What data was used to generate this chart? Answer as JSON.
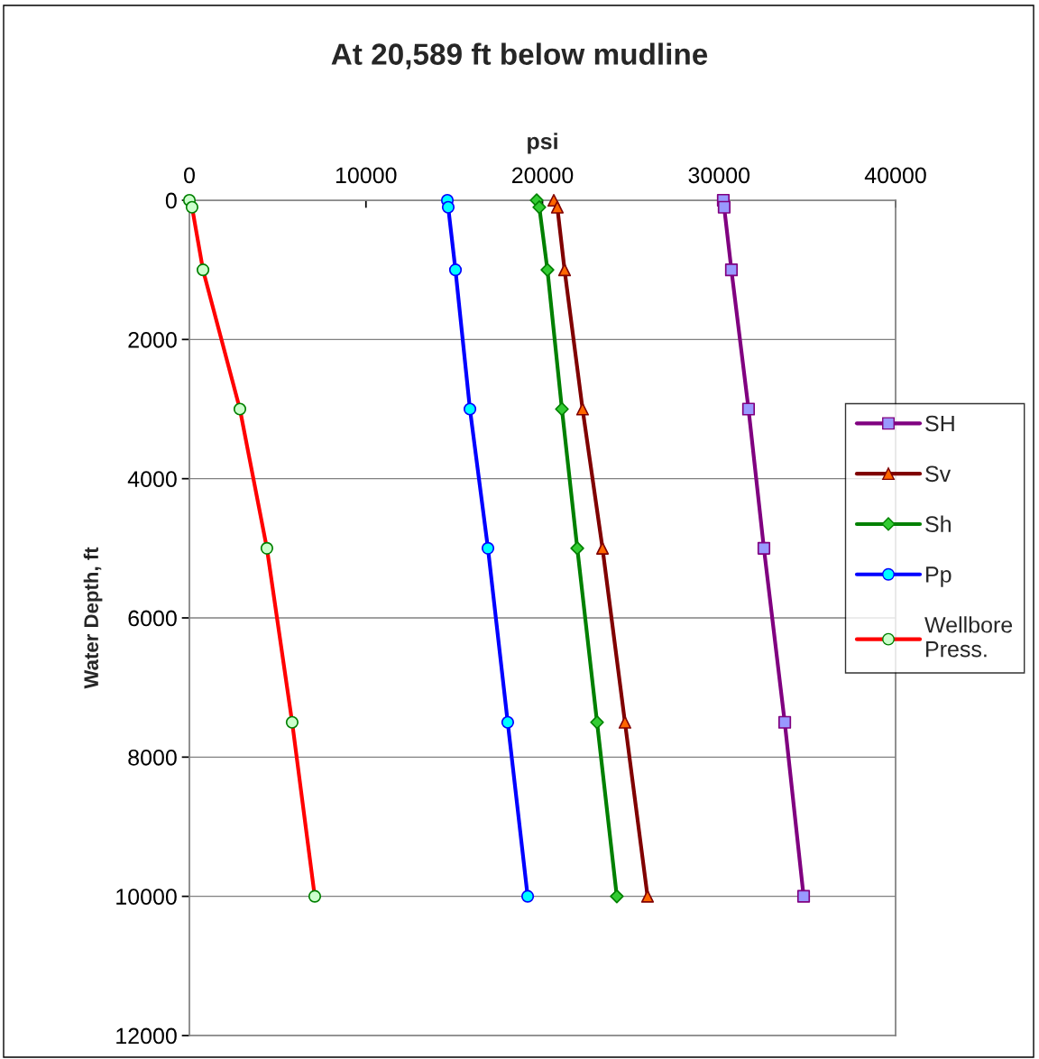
{
  "chart_data": {
    "type": "line",
    "title": "At 20,589 ft below mudline",
    "xlabel": "psi",
    "ylabel": "Water Depth, ft",
    "xlim": [
      0,
      40000
    ],
    "xticks": [
      0,
      10000,
      20000,
      30000,
      40000
    ],
    "ylim": [
      12000,
      0
    ],
    "yticks": [
      0,
      2000,
      4000,
      6000,
      8000,
      10000,
      12000
    ],
    "grid": "y",
    "legend": "right",
    "line_style": "solid",
    "series": [
      {
        "name": "SH",
        "color": "#800080",
        "marker": "square",
        "colors": [
          "#9999ff",
          "#9999ff",
          "#9999ff",
          "#9999ff",
          "#9999ff",
          "#9999ff",
          "#9999ff"
        ],
        "x": [
          30240,
          30290,
          30700,
          31670,
          32540,
          33720,
          34790
        ],
        "values": [
          0,
          100,
          1000,
          3000,
          5000,
          7500,
          10000
        ]
      },
      {
        "name": "Sv",
        "color": "#800000",
        "marker": "triangle",
        "colors": [
          "#ff6600",
          "#ff6600",
          "#ff6600",
          "#ff6600",
          "#ff6600",
          "#ff6600",
          "#ff6600"
        ],
        "x": [
          20640,
          20840,
          21250,
          22270,
          23400,
          24670,
          25950
        ],
        "values": [
          0,
          100,
          1000,
          3000,
          5000,
          7500,
          10000
        ]
      },
      {
        "name": "Sh",
        "color": "#008000",
        "marker": "diamond",
        "colors": [
          "#33cc33",
          "#33cc33",
          "#33cc33",
          "#33cc33",
          "#33cc33",
          "#33cc33",
          "#33cc33"
        ],
        "x": [
          19670,
          19820,
          20280,
          21100,
          21970,
          23090,
          24210
        ],
        "values": [
          0,
          100,
          1000,
          3000,
          5000,
          7500,
          10000
        ]
      },
      {
        "name": "Pp",
        "color": "#0000ff",
        "marker": "circle",
        "colors": [
          "#00ffff",
          "#00ffff",
          "#00ffff",
          "#00ffff",
          "#00ffff",
          "#00ffff",
          "#00ffff"
        ],
        "x": [
          14610,
          14660,
          15070,
          15890,
          16910,
          18030,
          19160
        ],
        "values": [
          0,
          100,
          1000,
          3000,
          5000,
          7500,
          10000
        ]
      },
      {
        "name": "Wellbore\nPress.",
        "color": "#ff0000",
        "marker": "circle",
        "colors": [
          "#ccffcc",
          "#ccffcc",
          "#ccffcc",
          "#ccffcc",
          "#ccffcc",
          "#ccffcc",
          "#ccffcc"
        ],
        "x": [
          0,
          150,
          770,
          2860,
          4390,
          5820,
          7100
        ],
        "values": [
          0,
          100,
          1000,
          3000,
          5000,
          7500,
          10000
        ]
      }
    ]
  }
}
